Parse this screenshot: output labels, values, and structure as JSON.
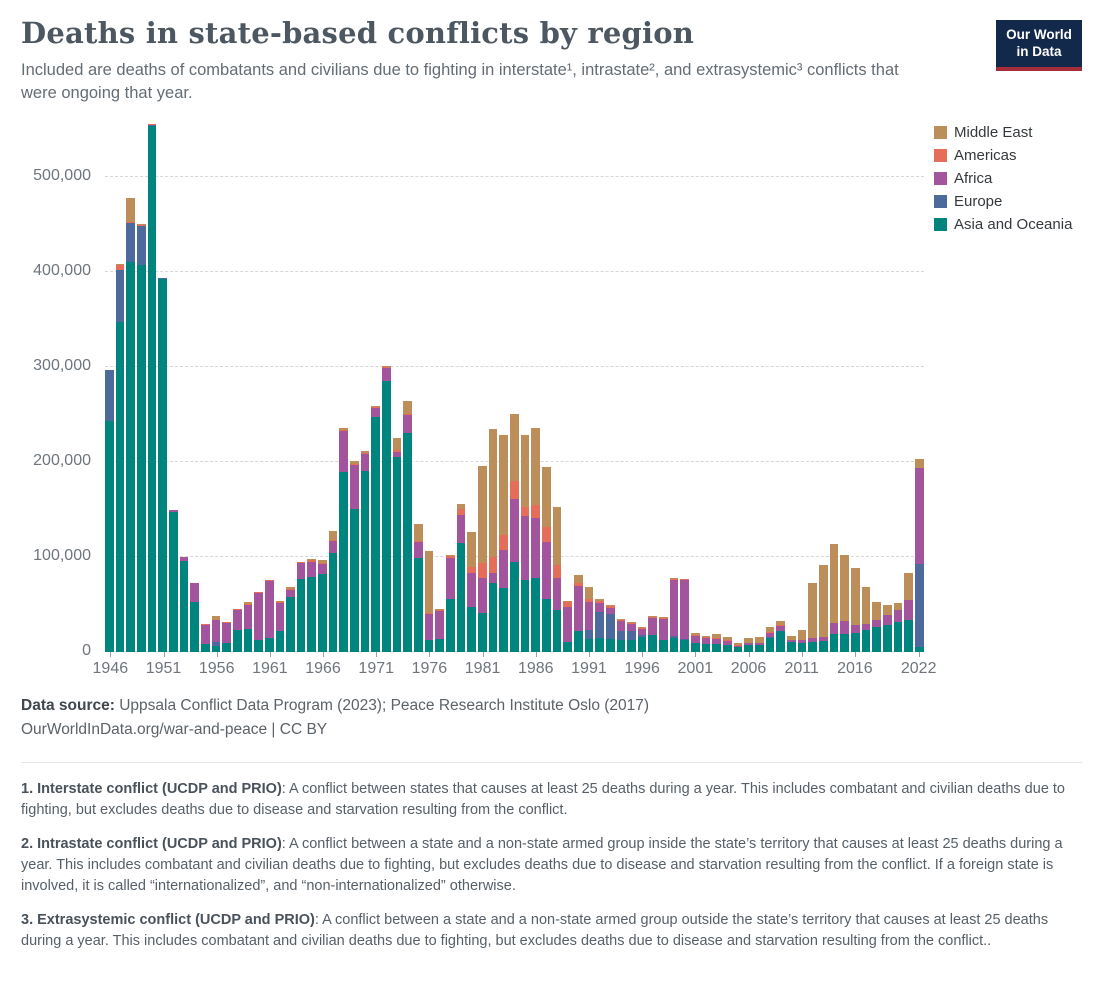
{
  "header": {
    "title": "Deaths in state-based conflicts by region",
    "subtitle": "Included are deaths of combatants and civilians due to fighting in interstate¹, intrastate², and extrasystemic³ conflicts that were ongoing that year.",
    "logo_line1": "Our World",
    "logo_line2": "in Data",
    "logo_bg": "#12294c",
    "logo_stripe": "#a52c39"
  },
  "chart_data": {
    "type": "bar",
    "stacked": true,
    "title": "Deaths in state-based conflicts by region",
    "unit": "deaths",
    "values_scale": 1000,
    "x_label": "Year",
    "x_range": [
      1946,
      2022
    ],
    "ylim": [
      0,
      560000
    ],
    "yticks": [
      0,
      100000,
      200000,
      300000,
      400000,
      500000
    ],
    "ytick_labels": [
      "0",
      "100,000",
      "200,000",
      "300,000",
      "400,000",
      "500,000"
    ],
    "xticks": [
      1946,
      1951,
      1956,
      1961,
      1966,
      1971,
      1976,
      1981,
      1986,
      1991,
      1996,
      2001,
      2006,
      2011,
      2016,
      2022
    ],
    "grid": "dashed-horizontal",
    "legend_position": "top-right",
    "legend": [
      {
        "label": "Middle East",
        "color": "#BC8E5A"
      },
      {
        "label": "Americas",
        "color": "#E56E5A"
      },
      {
        "label": "Africa",
        "color": "#A2559C"
      },
      {
        "label": "Europe",
        "color": "#4C6A9C"
      },
      {
        "label": "Asia and Oceania",
        "color": "#00847E"
      }
    ],
    "series": [
      {
        "name": "Asia and Oceania",
        "color": "#00847E",
        "values_thousands": [
          243,
          347,
          410,
          407,
          554,
          393,
          147,
          96,
          52,
          8,
          6,
          9,
          23,
          24,
          13,
          15,
          22,
          58,
          77,
          79,
          82,
          104,
          189,
          150,
          190,
          247,
          285,
          205,
          230,
          99,
          12,
          14,
          56,
          115,
          47,
          41,
          72,
          67,
          95,
          76,
          78,
          56,
          44,
          10,
          22,
          14,
          15,
          14,
          12,
          13,
          16,
          18,
          12,
          15,
          13,
          9,
          8,
          8,
          7,
          5,
          7,
          7,
          15,
          22,
          10,
          9,
          10,
          11,
          19,
          19,
          20,
          23,
          26,
          28,
          31,
          34,
          5
        ]
      },
      {
        "name": "Europe",
        "color": "#4C6A9C",
        "values_thousands": [
          54,
          55,
          41,
          41,
          1,
          1,
          0,
          0,
          0,
          0,
          4,
          0,
          0,
          0,
          0,
          0,
          0,
          0,
          0,
          0,
          0,
          0,
          0,
          0,
          0,
          0,
          0,
          0,
          0,
          0,
          0,
          0,
          0,
          0,
          0,
          0,
          0,
          0,
          0,
          0,
          0,
          0,
          0,
          0,
          0,
          9,
          27,
          26,
          10,
          9,
          2,
          0,
          1,
          2,
          1,
          0,
          0,
          0,
          0,
          0,
          0,
          0,
          1,
          0,
          0,
          0,
          0,
          0,
          0,
          0,
          0,
          0,
          0,
          0,
          0,
          0,
          87
        ]
      },
      {
        "name": "Africa",
        "color": "#A2559C",
        "values_thousands": [
          0,
          0,
          0,
          0,
          0,
          0,
          2,
          4,
          20,
          20,
          24,
          21,
          21,
          25,
          49,
          60,
          29,
          7,
          17,
          16,
          11,
          13,
          44,
          47,
          18,
          10,
          14,
          5,
          19,
          17,
          28,
          29,
          43,
          29,
          36,
          37,
          11,
          40,
          66,
          67,
          63,
          60,
          34,
          37,
          47,
          30,
          9,
          6,
          11,
          7,
          6,
          18,
          22,
          59,
          62,
          8,
          7,
          6,
          4,
          1,
          2,
          2,
          4,
          5,
          2,
          4,
          5,
          5,
          11,
          13,
          8,
          6,
          8,
          11,
          13,
          21,
          102
        ]
      },
      {
        "name": "Americas",
        "color": "#E56E5A",
        "values_thousands": [
          0,
          5,
          1,
          1,
          1,
          0,
          0,
          0,
          1,
          1,
          0,
          1,
          1,
          1,
          1,
          1,
          1,
          1,
          1,
          2,
          1,
          1,
          1,
          1,
          1,
          1,
          1,
          2,
          1,
          1,
          1,
          1,
          2,
          6,
          6,
          16,
          17,
          16,
          19,
          10,
          14,
          15,
          13,
          5,
          4,
          3,
          3,
          2,
          1,
          1,
          1,
          1,
          1,
          1,
          1,
          1,
          1,
          1,
          1,
          1,
          0,
          0,
          1,
          1,
          1,
          0,
          0,
          0,
          0,
          0,
          0,
          0,
          0,
          0,
          0,
          0,
          0
        ]
      },
      {
        "name": "Middle East",
        "color": "#BC8E5A",
        "values_thousands": [
          0,
          1,
          26,
          1,
          0,
          0,
          0,
          0,
          0,
          0,
          4,
          0,
          0,
          2,
          0,
          0,
          2,
          2,
          0,
          1,
          3,
          9,
          2,
          3,
          2,
          1,
          1,
          13,
          14,
          18,
          65,
          1,
          1,
          6,
          37,
          102,
          135,
          105,
          70,
          75,
          81,
          64,
          61,
          2,
          8,
          12,
          2,
          1,
          1,
          1,
          1,
          1,
          1,
          1,
          0,
          2,
          1,
          4,
          4,
          2,
          6,
          7,
          5,
          5,
          4,
          10,
          57,
          75,
          84,
          70,
          60,
          39,
          18,
          10,
          7,
          28,
          9
        ]
      }
    ]
  },
  "footer": {
    "source_label": "Data source:",
    "source_text": " Uppsala Conflict Data Program (2023); Peace Research Institute Oslo (2017)",
    "license_line": "OurWorldInData.org/war-and-peace | CC BY"
  },
  "footnotes": [
    {
      "bold": "1. Interstate conflict (UCDP and PRIO)",
      "text": ": A conflict between states that causes at least 25 deaths during a year. This includes combatant and civilian deaths due to fighting, but excludes deaths due to disease and starvation resulting from the conflict."
    },
    {
      "bold": "2. Intrastate conflict (UCDP and PRIO)",
      "text": ": A conflict between a state and a non-state armed group inside the state’s territory that causes at least 25 deaths during a year. This includes combatant and civilian deaths due to fighting, but excludes deaths due to disease and starvation resulting from the conflict. If a foreign state is involved, it is called “internationalized”, and “non-internationalized” otherwise."
    },
    {
      "bold": "3. Extrasystemic conflict (UCDP and PRIO)",
      "text": ": A conflict between a state and a non-state armed group outside the state’s territory that causes at least 25 deaths during a year. This includes combatant and civilian deaths due to fighting, but excludes deaths due to disease and starvation resulting from the conflict.."
    }
  ]
}
